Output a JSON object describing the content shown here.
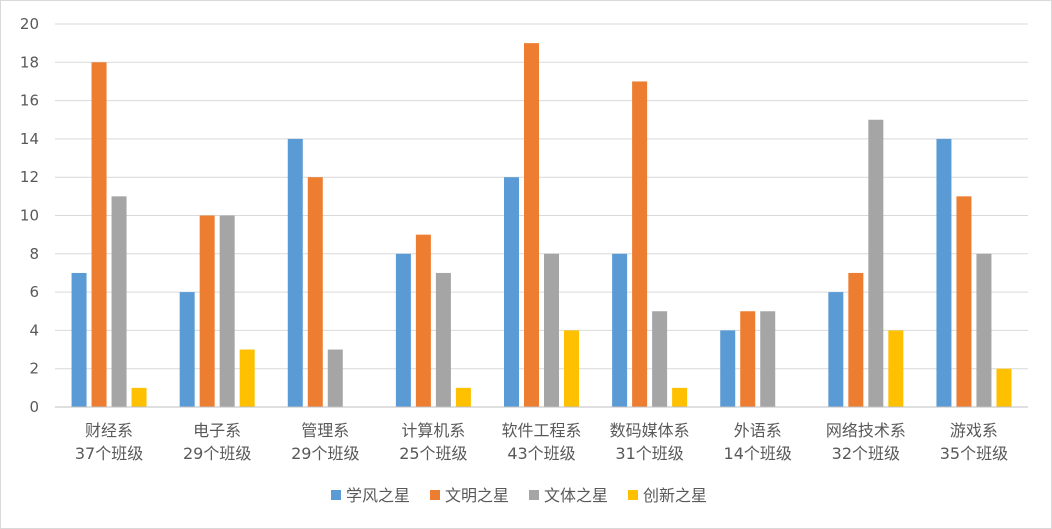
{
  "chart_data": {
    "type": "bar",
    "title": "",
    "xlabel": "",
    "ylabel": "",
    "ylim": [
      0,
      20
    ],
    "yticks": [
      0,
      2,
      4,
      6,
      8,
      10,
      12,
      14,
      16,
      18,
      20
    ],
    "grid": true,
    "legend_position": "bottom",
    "categories": [
      [
        "财经系",
        "37个班级"
      ],
      [
        "电子系",
        "29个班级"
      ],
      [
        "管理系",
        "29个班级"
      ],
      [
        "计算机系",
        "25个班级"
      ],
      [
        "软件工程系",
        "43个班级"
      ],
      [
        "数码媒体系",
        "31个班级"
      ],
      [
        "外语系",
        "14个班级"
      ],
      [
        "网络技术系",
        "32个班级"
      ],
      [
        "游戏系",
        "35个班级"
      ]
    ],
    "series": [
      {
        "name": "学风之星",
        "color": "#5b9bd5",
        "values": [
          7,
          6,
          14,
          8,
          12,
          8,
          4,
          6,
          14
        ]
      },
      {
        "name": "文明之星",
        "color": "#ed7d31",
        "values": [
          18,
          10,
          12,
          9,
          19,
          17,
          5,
          7,
          11
        ]
      },
      {
        "name": "文体之星",
        "color": "#a5a5a5",
        "values": [
          11,
          10,
          3,
          7,
          8,
          5,
          5,
          15,
          8
        ]
      },
      {
        "name": "创新之星",
        "color": "#ffc000",
        "values": [
          1,
          3,
          0,
          1,
          4,
          1,
          0,
          4,
          2
        ]
      }
    ]
  }
}
